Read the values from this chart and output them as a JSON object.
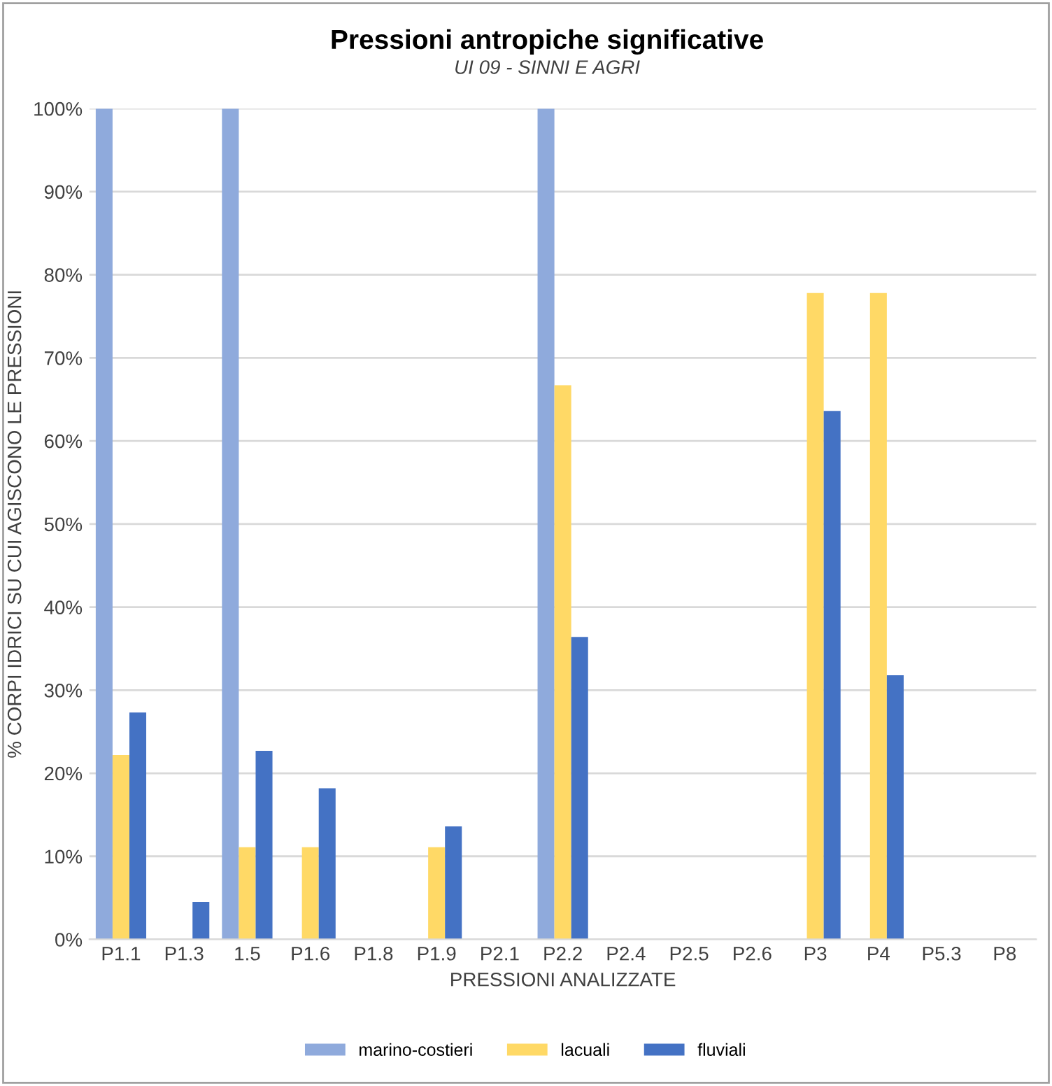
{
  "chart_data": {
    "type": "bar",
    "title": "Pressioni antropiche significative",
    "subtitle": "UI 09 - SINNI E AGRI",
    "xlabel": "PRESSIONI ANALIZZATE",
    "ylabel": "% CORPI IDRICI SU CUI AGISCONO LE PRESSIONI",
    "categories": [
      "P1.1",
      "P1.3",
      "1.5",
      "P1.6",
      "P1.8",
      "P1.9",
      "P2.1",
      "P2.2",
      "P2.4",
      "P2.5",
      "P2.6",
      "P3",
      "P4",
      "P5.3",
      "P8"
    ],
    "series": [
      {
        "name": "marino-costieri",
        "color": "#8faadc",
        "values": [
          100,
          0,
          100,
          0,
          0,
          0,
          0,
          100,
          0,
          0,
          0,
          0,
          0,
          0,
          0
        ]
      },
      {
        "name": "lacuali",
        "color": "#ffd966",
        "values": [
          22.2,
          0,
          11.1,
          11.1,
          0,
          11.1,
          0,
          66.7,
          0,
          0,
          0,
          77.8,
          77.8,
          0,
          0
        ]
      },
      {
        "name": "fluviali",
        "color": "#4472c4",
        "values": [
          27.3,
          4.5,
          22.7,
          18.2,
          0,
          13.6,
          0,
          36.4,
          0,
          0,
          0,
          63.6,
          31.8,
          0,
          0
        ]
      }
    ],
    "ylim": [
      0,
      100
    ],
    "yticks": [
      {
        "value": 0,
        "label": "0%"
      },
      {
        "value": 10,
        "label": "10%"
      },
      {
        "value": 20,
        "label": "20%"
      },
      {
        "value": 30,
        "label": "30%"
      },
      {
        "value": 40,
        "label": "40%"
      },
      {
        "value": 50,
        "label": "50%"
      },
      {
        "value": 60,
        "label": "60%"
      },
      {
        "value": 70,
        "label": "70%"
      },
      {
        "value": 80,
        "label": "80%"
      },
      {
        "value": 90,
        "label": "90%"
      },
      {
        "value": 100,
        "label": "100%"
      }
    ],
    "grid": "y",
    "legend": "bottom"
  }
}
